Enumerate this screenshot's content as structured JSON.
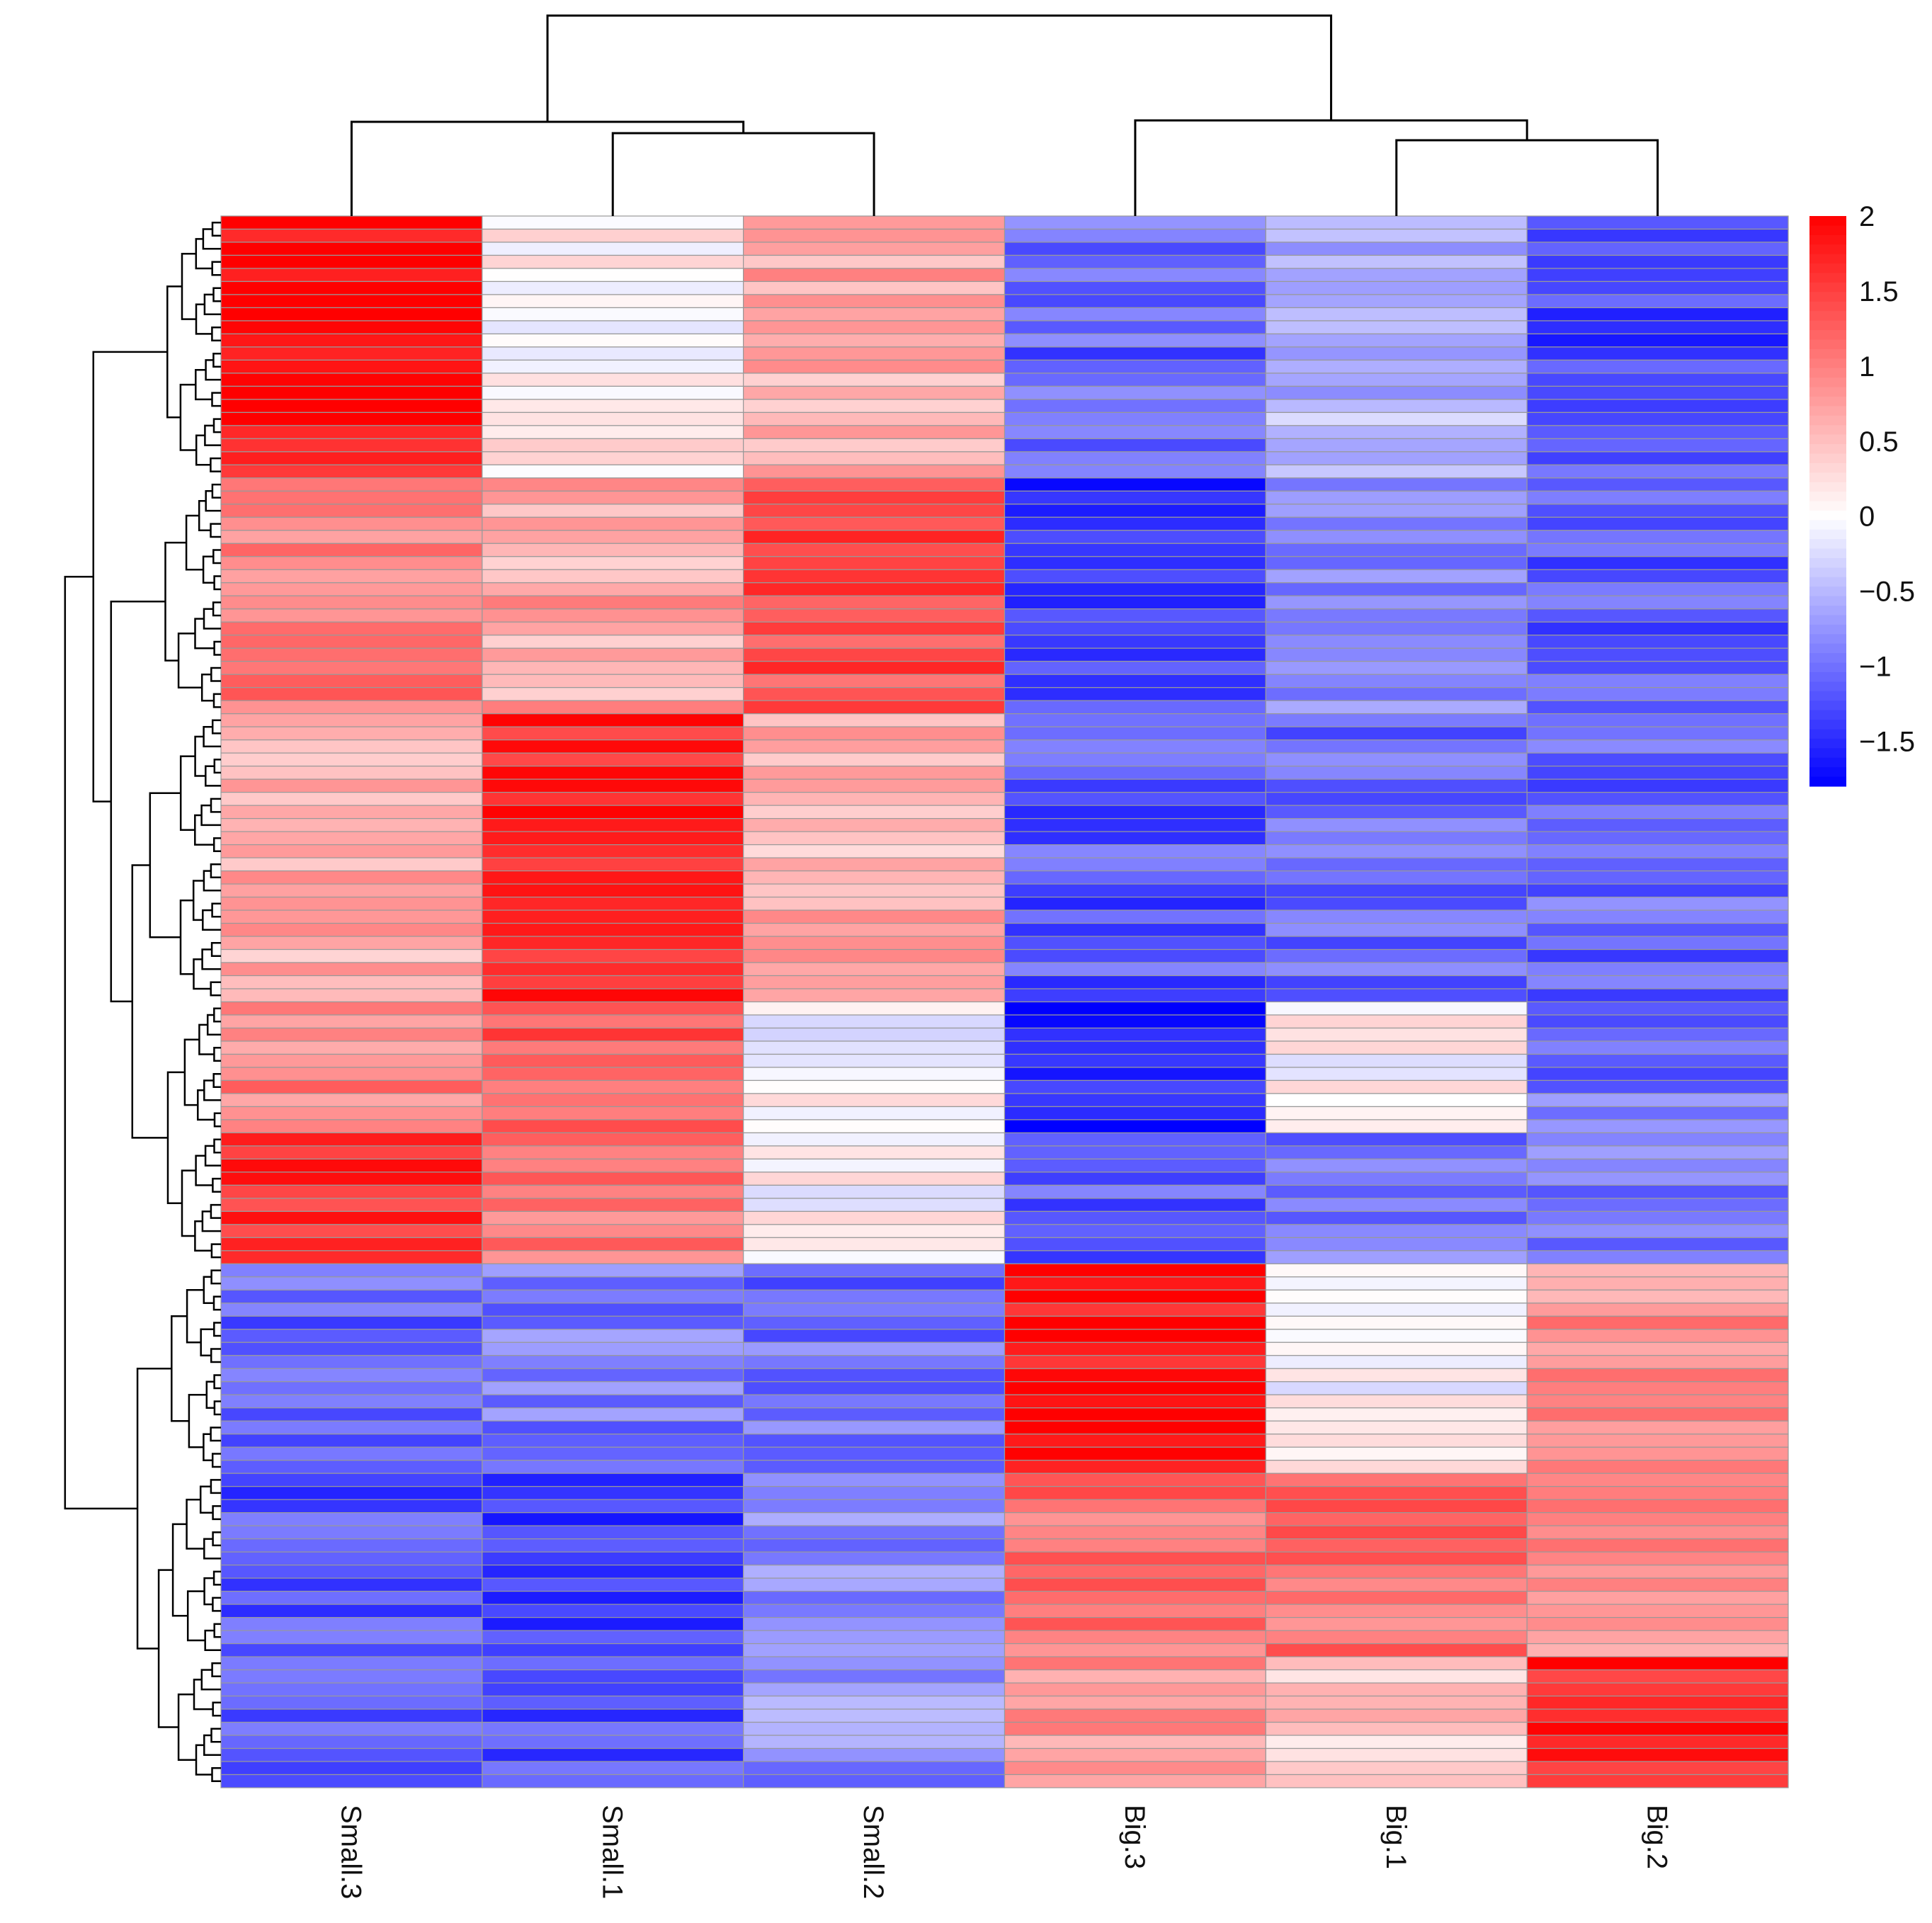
{
  "chart_data": {
    "type": "heatmap",
    "title": "",
    "xlabel": "",
    "ylabel": "",
    "columns": [
      "Small.3",
      "Small.1",
      "Small.2",
      "Big.3",
      "Big.1",
      "Big.2"
    ],
    "row_count": 120,
    "colorbar": {
      "min": -1.8,
      "max": 2.0,
      "ticks": [
        {
          "value": 2,
          "label": "2"
        },
        {
          "value": 1.5,
          "label": "1.5"
        },
        {
          "value": 1,
          "label": "1"
        },
        {
          "value": 0.5,
          "label": "0.5"
        },
        {
          "value": 0,
          "label": "0"
        },
        {
          "value": -0.5,
          "label": "−0.5"
        },
        {
          "value": -1,
          "label": "−1"
        },
        {
          "value": -1.5,
          "label": "−1.5"
        }
      ],
      "colors": {
        "low": "#0000ff",
        "mid": "#ffffff",
        "high": "#ff0000"
      }
    },
    "cell_border_color": "#999999",
    "dendrogram_color": "#000000",
    "column_dendrogram": "((Small.3,(Small.1,Small.2)),(Big.3,(Big.1,Big.2)))",
    "row_blocks": [
      {
        "rows": 20,
        "values": [
          1.9,
          0.1,
          0.7,
          -1.1,
          -0.6,
          -1.3
        ]
      },
      {
        "rows": 18,
        "values": [
          1.0,
          0.7,
          1.4,
          -1.4,
          -0.8,
          -1.2
        ]
      },
      {
        "rows": 22,
        "values": [
          0.6,
          1.7,
          0.6,
          -1.2,
          -1.0,
          -1.1
        ]
      },
      {
        "rows": 10,
        "values": [
          1.0,
          1.3,
          0.0,
          -1.6,
          0.1,
          -1.0
        ]
      },
      {
        "rows": 10,
        "values": [
          1.6,
          1.0,
          0.0,
          -1.1,
          -1.0,
          -0.9
        ]
      },
      {
        "rows": 16,
        "values": [
          -1.1,
          -0.9,
          -1.0,
          1.9,
          0.0,
          0.9
        ]
      },
      {
        "rows": 14,
        "values": [
          -1.2,
          -1.3,
          -0.9,
          1.1,
          1.1,
          0.8
        ]
      },
      {
        "rows": 10,
        "values": [
          -1.2,
          -1.2,
          -0.8,
          0.9,
          0.5,
          1.7
        ]
      }
    ]
  }
}
